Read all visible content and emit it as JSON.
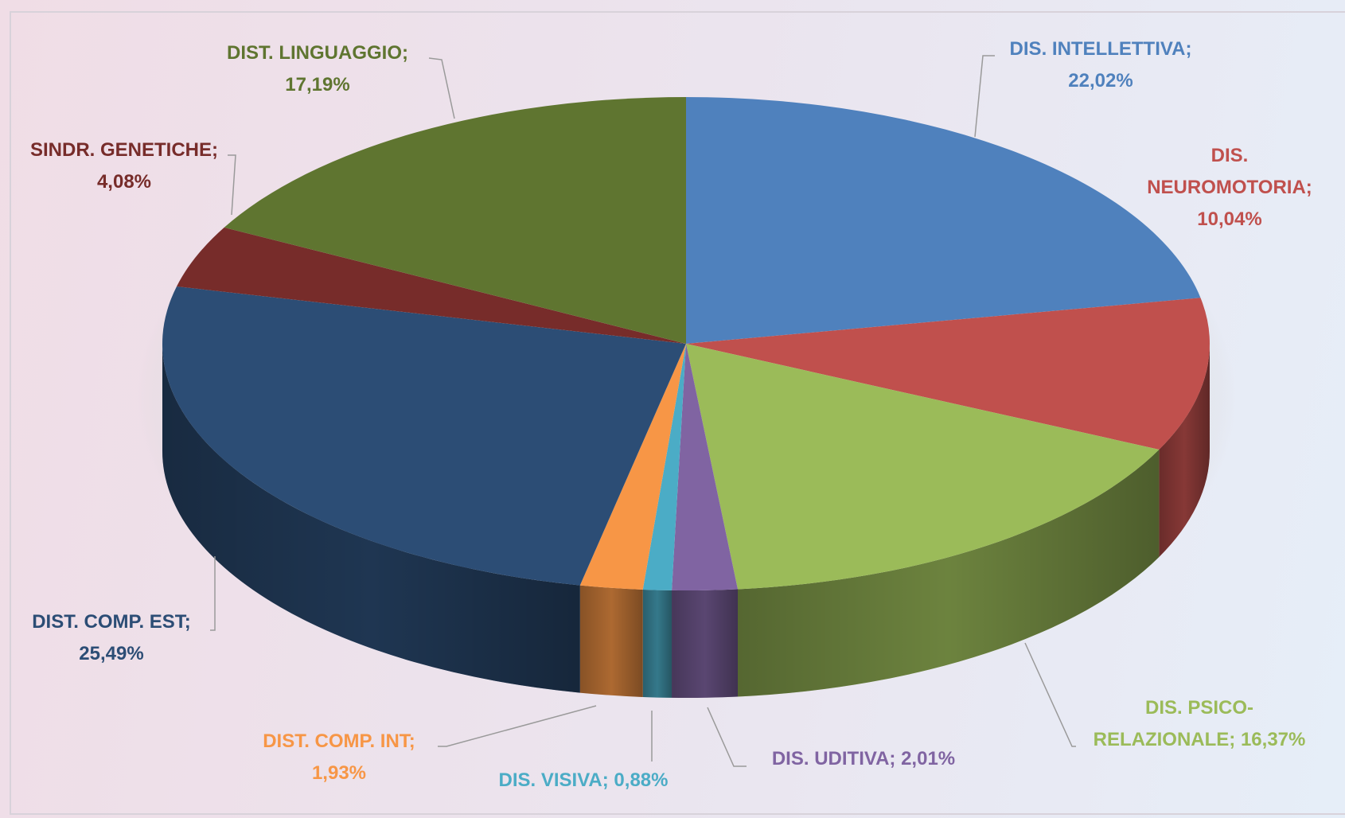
{
  "chart_data": {
    "type": "pie",
    "categories": [
      "DIS. INTELLETTIVA;",
      "DIS. NEUROMOTORIA;",
      "DIS. PSICO-RELAZIONALE;",
      "DIS. UDITIVA;",
      "DIS. VISIVA;",
      "DIST. COMP. INT;",
      "DIST. COMP. EST;",
      "SINDR. GENETICHE;",
      "DIST. LINGUAGGIO;"
    ],
    "values": [
      22.02,
      10.04,
      16.37,
      2.01,
      0.88,
      1.93,
      25.49,
      4.08,
      17.19
    ],
    "value_labels": [
      "22,02%",
      "10,04%",
      "16,37%",
      "2,01%",
      "0,88%",
      "1,93%",
      "25,49%",
      "4,08%",
      "17,19%"
    ],
    "colors": [
      "#4f81bd",
      "#c0504d",
      "#9bbb59",
      "#8064a2",
      "#4bacc6",
      "#f79646",
      "#2c4d75",
      "#772c2a",
      "#5f7530"
    ],
    "label_colors": [
      "#4f81bd",
      "#c0504d",
      "#9bbb59",
      "#8064a2",
      "#4bacc6",
      "#f79646",
      "#2c4d75",
      "#772c2a",
      "#5f7530"
    ]
  }
}
